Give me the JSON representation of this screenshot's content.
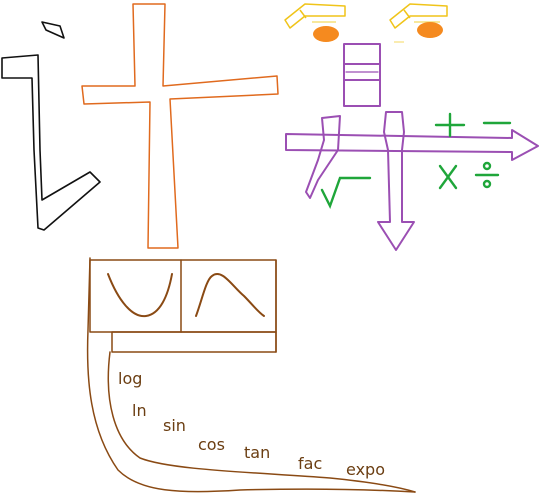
{
  "colors": {
    "black": "#111111",
    "orange": "#e06a1e",
    "brown": "#8a4a14",
    "brown_dark": "#6b3e12",
    "purple": "#9b4fb3",
    "green": "#1fa63a",
    "yellow": "#f0c419",
    "yellow_light": "#f6e07a",
    "orange_blob": "#f58a1f"
  },
  "symbols": {
    "plus": "+",
    "minus": "−",
    "times": "X",
    "divide": "÷",
    "sqrt": "√"
  },
  "functions": [
    {
      "key": "log",
      "label": "log"
    },
    {
      "key": "ln",
      "label": "ln"
    },
    {
      "key": "sin",
      "label": "sin"
    },
    {
      "key": "cos",
      "label": "cos"
    },
    {
      "key": "tan",
      "label": "tan"
    },
    {
      "key": "fac",
      "label": "fac"
    },
    {
      "key": "expo",
      "label": "expo"
    }
  ]
}
